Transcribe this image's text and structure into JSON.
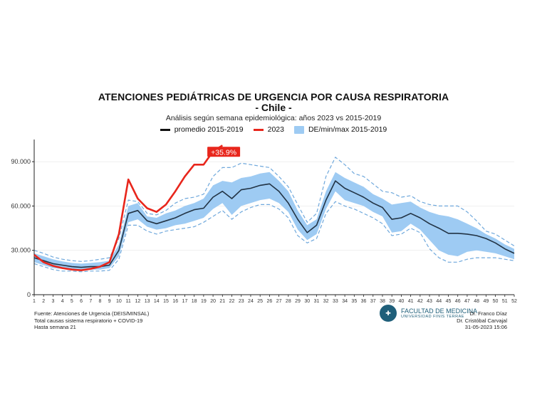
{
  "chart_data": {
    "type": "line",
    "title": "ATENCIONES PEDIÁTRICAS DE URGENCIA POR CAUSA RESPIRATORIA",
    "subtitle": "- Chile -",
    "analysis": "Análisis según semana epidemiológica: años 2023 vs 2015-2019",
    "xlabel": "",
    "ylabel": "",
    "xlim": [
      1,
      52
    ],
    "ylim": [
      0,
      105000
    ],
    "yticks": [
      0,
      30000,
      60000,
      90000
    ],
    "ytick_labels": [
      "0",
      "30.000",
      "60.000",
      "90.000"
    ],
    "x_ticks": [
      1,
      2,
      3,
      4,
      5,
      6,
      7,
      8,
      9,
      10,
      11,
      12,
      13,
      14,
      15,
      16,
      17,
      18,
      19,
      20,
      21,
      22,
      23,
      24,
      25,
      26,
      27,
      28,
      29,
      30,
      31,
      32,
      33,
      34,
      35,
      36,
      37,
      38,
      39,
      40,
      41,
      42,
      43,
      44,
      45,
      46,
      47,
      48,
      49,
      50,
      51,
      52
    ],
    "legend": {
      "placement": "top-center",
      "entries": [
        {
          "label": "promedio 2015-2019",
          "color": "#111111",
          "kind": "line"
        },
        {
          "label": "2023",
          "color": "#e8261c",
          "kind": "line"
        },
        {
          "label": "DE/min/max 2015-2019",
          "color": "#9ecbf3",
          "kind": "box"
        }
      ]
    },
    "series": [
      {
        "name": "promedio 2015-2019",
        "color": "#223344",
        "x": [
          1,
          2,
          3,
          4,
          5,
          6,
          7,
          8,
          9,
          10,
          11,
          12,
          13,
          14,
          15,
          16,
          17,
          18,
          19,
          20,
          21,
          22,
          23,
          24,
          25,
          26,
          27,
          28,
          29,
          30,
          31,
          32,
          33,
          34,
          35,
          36,
          37,
          38,
          39,
          40,
          41,
          42,
          43,
          44,
          45,
          46,
          47,
          48,
          49,
          50,
          51,
          52
        ],
        "values": [
          25000,
          23000,
          21000,
          20000,
          19000,
          18500,
          19000,
          19000,
          20000,
          30000,
          55000,
          57000,
          50000,
          48000,
          50000,
          52000,
          55000,
          57500,
          58500,
          66000,
          70000,
          65000,
          71000,
          72000,
          74000,
          75000,
          70000,
          62000,
          51000,
          42000,
          47000,
          64000,
          77000,
          72000,
          69000,
          66000,
          62000,
          59000,
          51000,
          52000,
          55000,
          52000,
          48000,
          45000,
          41500,
          41500,
          41000,
          40000,
          38000,
          35000,
          31000,
          28000
        ]
      },
      {
        "name": "2023",
        "color": "#e8261c",
        "x": [
          1,
          2,
          3,
          4,
          5,
          6,
          7,
          8,
          9,
          10,
          11,
          12,
          13,
          14,
          15,
          16,
          17,
          18,
          19,
          20,
          21
        ],
        "values": [
          27000,
          22000,
          19500,
          18000,
          17000,
          16500,
          17500,
          19000,
          22000,
          41000,
          78000,
          65000,
          58500,
          56000,
          61000,
          70000,
          80000,
          88000,
          88000,
          97000,
          101000
        ]
      }
    ],
    "band": {
      "name": "DE/min/max 2015-2019",
      "color": "#9ecbf3",
      "x": [
        1,
        2,
        3,
        4,
        5,
        6,
        7,
        8,
        9,
        10,
        11,
        12,
        13,
        14,
        15,
        16,
        17,
        18,
        19,
        20,
        21,
        22,
        23,
        24,
        25,
        26,
        27,
        28,
        29,
        30,
        31,
        32,
        33,
        34,
        35,
        36,
        37,
        38,
        39,
        40,
        41,
        42,
        43,
        44,
        45,
        46,
        47,
        48,
        49,
        50,
        51,
        52
      ],
      "upper": [
        28000,
        26000,
        24000,
        22500,
        21500,
        21000,
        21500,
        22000,
        23000,
        34000,
        60000,
        62000,
        53000,
        52000,
        55000,
        57000,
        60000,
        62000,
        65000,
        74000,
        77000,
        76000,
        79000,
        80000,
        82000,
        83000,
        77000,
        70000,
        57000,
        47000,
        51000,
        70000,
        83000,
        79000,
        76000,
        73000,
        68000,
        65000,
        61000,
        62000,
        63000,
        59000,
        56000,
        54000,
        53000,
        51000,
        48000,
        45000,
        41000,
        38000,
        34000,
        31000
      ],
      "lower": [
        22000,
        20000,
        18000,
        17500,
        17000,
        16500,
        17000,
        17000,
        18000,
        26000,
        49000,
        51000,
        46000,
        44000,
        45000,
        47000,
        48000,
        50000,
        52000,
        58000,
        62000,
        54000,
        60000,
        62000,
        64000,
        65000,
        62000,
        56000,
        44000,
        37000,
        41000,
        58000,
        70000,
        64000,
        62000,
        60000,
        56000,
        53000,
        42000,
        43000,
        48000,
        44000,
        37000,
        30000,
        27000,
        26000,
        29000,
        30000,
        29000,
        28000,
        26000,
        24000
      ]
    },
    "minmax": {
      "upper": [
        30000,
        28000,
        25500,
        24000,
        23000,
        22500,
        23000,
        24000,
        25000,
        38000,
        64000,
        63000,
        55000,
        54000,
        57000,
        62000,
        65000,
        66000,
        68000,
        80000,
        86000,
        86000,
        89000,
        88000,
        87000,
        86000,
        80000,
        73000,
        61000,
        49000,
        55000,
        80000,
        93000,
        88000,
        82000,
        80000,
        75000,
        70000,
        69000,
        66000,
        67000,
        63000,
        61000,
        60000,
        60000,
        60000,
        56000,
        50000,
        43000,
        41000,
        37000,
        33000
      ],
      "lower": [
        21000,
        19000,
        17000,
        16000,
        16000,
        15500,
        16000,
        16000,
        16500,
        24000,
        47000,
        47000,
        43000,
        41000,
        43000,
        44000,
        45000,
        46000,
        49000,
        53000,
        57000,
        51000,
        56000,
        59000,
        61000,
        61000,
        58000,
        52000,
        40000,
        35000,
        38000,
        55000,
        63000,
        60000,
        58000,
        55000,
        52000,
        48000,
        40000,
        41000,
        45000,
        42000,
        31000,
        25000,
        22000,
        22000,
        24000,
        25000,
        25000,
        25000,
        24000,
        23000
      ]
    },
    "annotation": {
      "text": "+35.9%",
      "x": 20,
      "y": 101000,
      "bg": "#e8261c",
      "color": "#ffffff"
    }
  },
  "footer": {
    "source_line1": "Fuente: Atenciones de Urgencia (DEIS/MINSAL)",
    "source_line2": "Total causas sistema respiratorio + COVID-19",
    "source_line3": "Hasta semana 21",
    "logo_line1": "FACULTAD DE MEDICINA",
    "logo_line2": "UNIVERSIDAD FINIS TERRAE",
    "author1": "Dr. Franco Díaz",
    "author2": "Dr. Cristóbal Carvajal",
    "date": "31-05-2023 15:06"
  }
}
